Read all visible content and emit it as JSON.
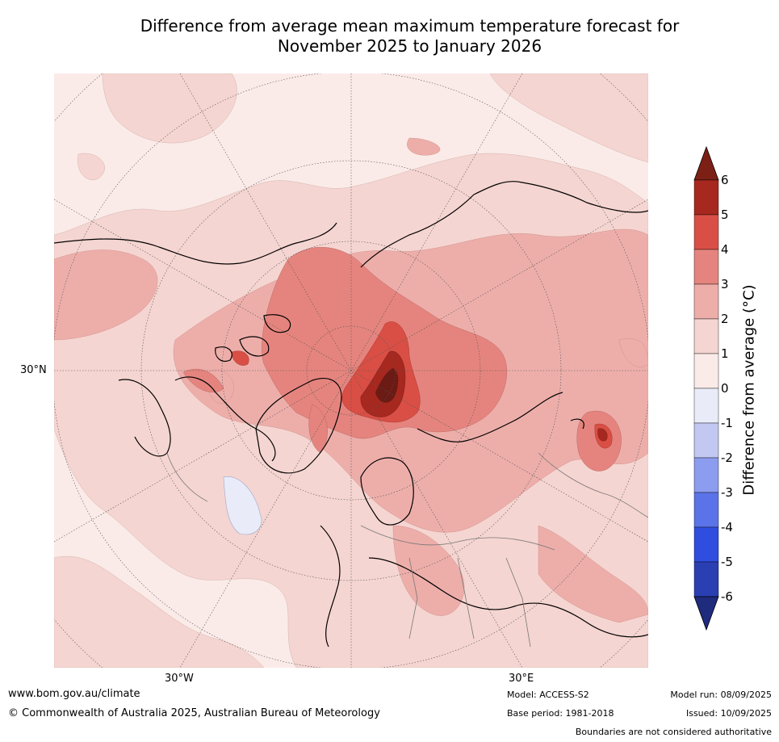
{
  "title": {
    "line1": "Difference from average mean maximum temperature forecast for",
    "line2": "November 2025 to January 2026"
  },
  "map": {
    "projection": "north polar stereographic",
    "lat_label": "30°N",
    "lon_labels": [
      "30°W",
      "30°E"
    ],
    "colors": {
      "ocean_pale": "#fbebe8",
      "shade_0_1": "#fbebe8",
      "shade_1_2": "#f5d5d1",
      "shade_2_3": "#edaeaa",
      "shade_3_4": "#e5847e",
      "shade_4_5": "#d94f45",
      "shade_5_6": "#a7281f",
      "shade_gt6": "#6b1a14",
      "shade_neg": "#e9ecf8",
      "coast": "#000000",
      "border": "#777777"
    }
  },
  "colorbar": {
    "label": "Difference from average (°C)",
    "ticks": [
      "6",
      "5",
      "4",
      "3",
      "2",
      "1",
      "0",
      "-1",
      "-2",
      "-3",
      "-4",
      "-5",
      "-6"
    ],
    "colors": [
      "#7c2016",
      "#a7281f",
      "#d94f45",
      "#e5847e",
      "#edaeaa",
      "#f5d5d1",
      "#fbebe8",
      "#e9ecf8",
      "#c2c8f2",
      "#8c9cef",
      "#5b73e8",
      "#2f4ee0",
      "#2a3fb2",
      "#1f2b7d"
    ]
  },
  "footer": {
    "url": "www.bom.gov.au/climate",
    "copyright": "© Commonwealth of Australia 2025, Australian Bureau of Meteorology",
    "model": "Model: ACCESS-S2",
    "base_period": "Base period: 1981-2018",
    "model_run": "Model run: 08/09/2025",
    "issued": "Issued: 10/09/2025",
    "boundaries_note": "Boundaries are not considered authoritative"
  }
}
